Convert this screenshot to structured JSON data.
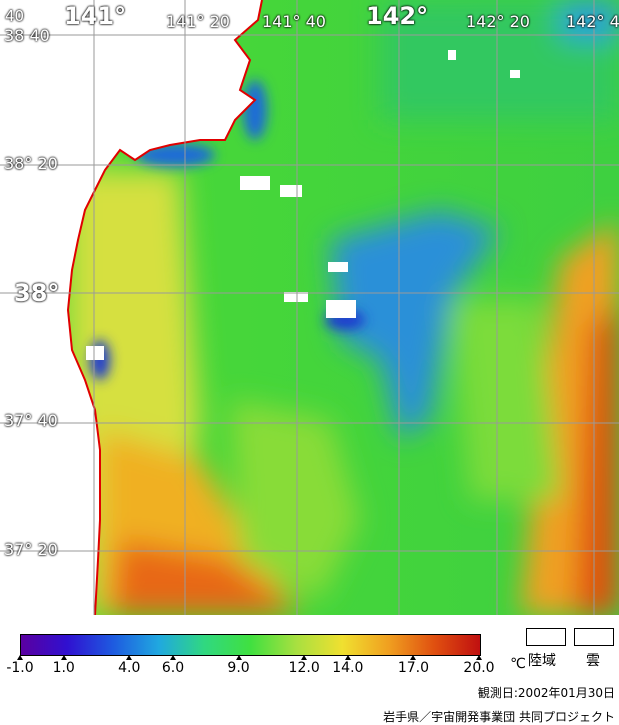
{
  "map": {
    "lon_labels": [
      "141°",
      "141° 20",
      "141° 40",
      "142°",
      "142° 20",
      "142° 4"
    ],
    "lat_labels": [
      "38 40",
      "38° 20",
      "38°",
      "37° 40",
      "37° 20"
    ],
    "corner_label": "40",
    "colors": {
      "land": "#ffffff",
      "coast": "#e00000",
      "grid": "#9a9a9a",
      "warm": "#f29a2a",
      "hot": "#e05010",
      "mid": "#42d840",
      "cool": "#1f8ad8",
      "cold": "#1a2fd0",
      "yellow": "#c8e040"
    }
  },
  "colorbar": {
    "ticks": [
      "-1.0",
      "1.0",
      "4.0",
      "6.0",
      "9.0",
      "12.0",
      "14.0",
      "17.0",
      "20.0"
    ],
    "unit": "℃",
    "gradient": [
      "#5a00a0",
      "#3010d0",
      "#1e5ae0",
      "#20a8e0",
      "#30d880",
      "#40e040",
      "#a8e040",
      "#f0e030",
      "#f0a020",
      "#e05010",
      "#c01010"
    ]
  },
  "legend": {
    "land_label": "陸域",
    "cloud_label": "雲"
  },
  "footer": {
    "obs_date": "観測日:2002年01月30日",
    "credit": "岩手県／宇宙開発事業団 共同プロジェクト"
  }
}
